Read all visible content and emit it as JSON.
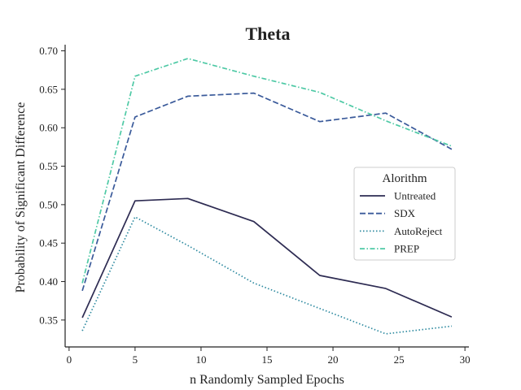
{
  "chart_data": {
    "type": "line",
    "title": "Theta",
    "xlabel": "n Randomly Sampled Epochs",
    "ylabel": "Probability of Significant Difference",
    "xlim": [
      -0.3,
      30.3
    ],
    "ylim": [
      0.315,
      0.708
    ],
    "xticks": [
      0,
      5,
      10,
      15,
      20,
      25,
      30
    ],
    "yticks": [
      0.35,
      0.4,
      0.45,
      0.5,
      0.55,
      0.6,
      0.65,
      0.7
    ],
    "ytick_labels": [
      "0.35",
      "0.40",
      "0.45",
      "0.50",
      "0.55",
      "0.60",
      "0.65",
      "0.70"
    ],
    "x": [
      1,
      5,
      9,
      14,
      19,
      24,
      29
    ],
    "legend_title": "Alorithm",
    "legend_position": "center-right",
    "grid": false,
    "series": [
      {
        "name": "Untreated",
        "values": [
          0.353,
          0.505,
          0.508,
          0.478,
          0.408,
          0.391,
          0.354
        ],
        "color": "#2d2b52",
        "dash": "solid"
      },
      {
        "name": "SDX",
        "values": [
          0.388,
          0.614,
          0.641,
          0.645,
          0.608,
          0.619,
          0.572
        ],
        "color": "#3a5a9a",
        "dash": "dashed"
      },
      {
        "name": "AutoReject",
        "values": [
          0.336,
          0.484,
          0.447,
          0.398,
          0.365,
          0.332,
          0.342
        ],
        "color": "#2e8aa0",
        "dash": "dotted"
      },
      {
        "name": "PREP",
        "values": [
          0.398,
          0.667,
          0.69,
          0.667,
          0.646,
          0.609,
          0.576
        ],
        "color": "#4ec9a5",
        "dash": "dashdot"
      }
    ]
  }
}
